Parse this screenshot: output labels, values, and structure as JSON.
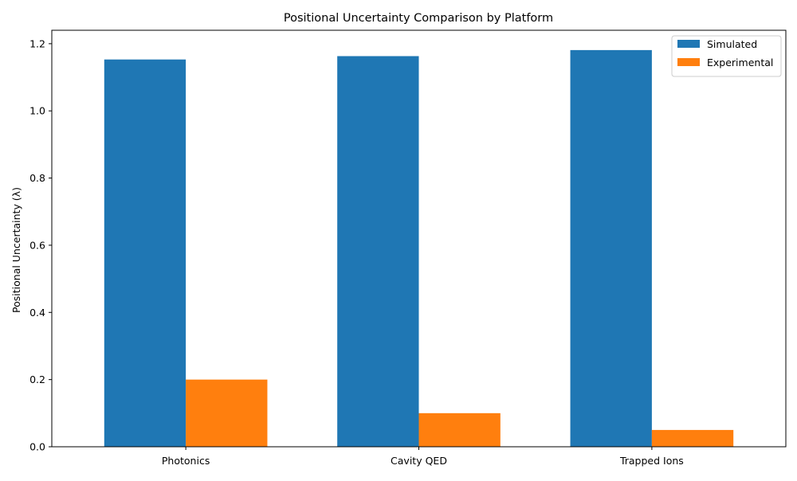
{
  "chart_data": {
    "type": "bar",
    "title": "Positional Uncertainty Comparison by Platform",
    "xlabel": "",
    "ylabel": "Positional Uncertainty (λ)",
    "categories": [
      "Photonics",
      "Cavity QED",
      "Trapped Ions"
    ],
    "series": [
      {
        "name": "Simulated",
        "color": "#1f77b4",
        "values": [
          1.153,
          1.163,
          1.181
        ]
      },
      {
        "name": "Experimental",
        "color": "#ff7f0e",
        "values": [
          0.2,
          0.1,
          0.05
        ]
      }
    ],
    "ylim": [
      0,
      1.24
    ],
    "yticks": [
      0.0,
      0.2,
      0.4,
      0.6,
      0.8,
      1.0,
      1.2
    ],
    "ytick_labels": [
      "0.0",
      "0.2",
      "0.4",
      "0.6",
      "0.8",
      "1.0",
      "1.2"
    ],
    "grid": false,
    "legend_position": "top-right"
  }
}
